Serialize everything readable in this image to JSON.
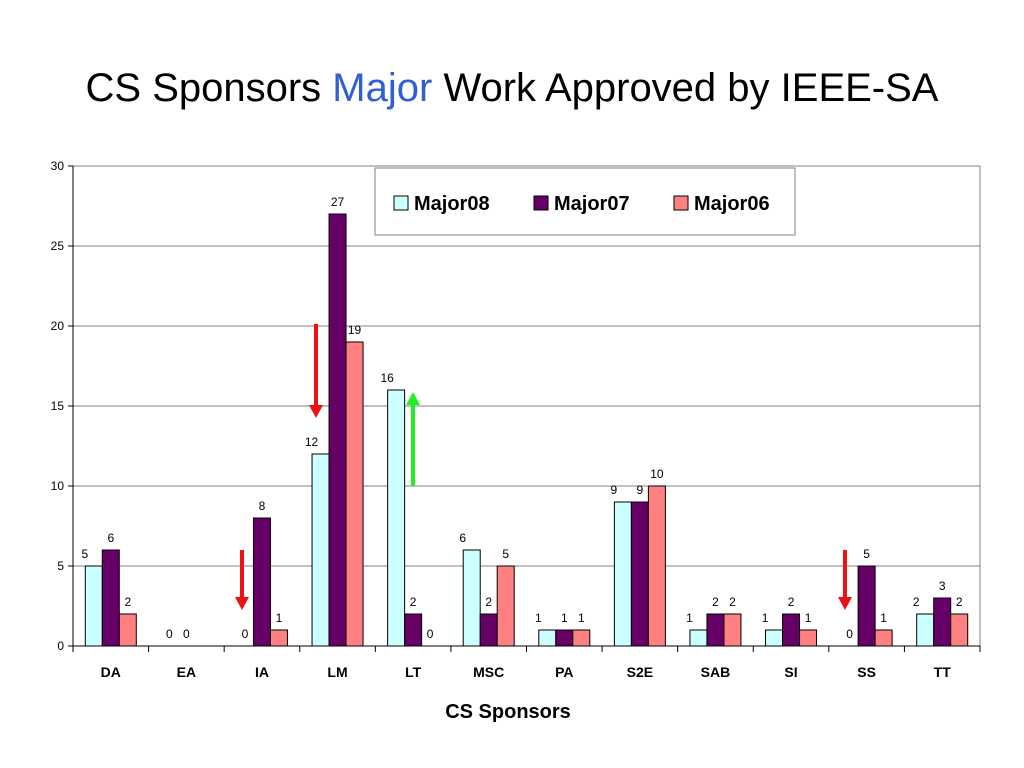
{
  "title": {
    "part1": "CS Sponsors ",
    "highlight": "Major",
    "part2": " Work Approved by IEEE-SA",
    "highlight_color": "#2f5fd0"
  },
  "chart_data": {
    "type": "bar",
    "categories": [
      "DA",
      "EA",
      "IA",
      "LM",
      "LT",
      "MSC",
      "PA",
      "S2E",
      "SAB",
      "SI",
      "SS",
      "TT"
    ],
    "series": [
      {
        "name": "Major08",
        "color": "#ccffff",
        "values": [
          5,
          0,
          0,
          12,
          16,
          6,
          1,
          9,
          1,
          1,
          0,
          2
        ]
      },
      {
        "name": "Major07",
        "color": "#660066",
        "values": [
          6,
          0,
          8,
          27,
          2,
          2,
          1,
          9,
          2,
          2,
          5,
          3
        ]
      },
      {
        "name": "Major06",
        "color": "#ff8080",
        "values": [
          2,
          null,
          1,
          19,
          0,
          5,
          1,
          10,
          2,
          1,
          1,
          2
        ]
      }
    ],
    "xlabel": "CS Sponsors",
    "ylabel": "",
    "ylim": [
      0,
      30
    ],
    "yticks": [
      0,
      5,
      10,
      15,
      20,
      25,
      30
    ],
    "grid": true,
    "legend_position": "top-right",
    "annotations": [
      {
        "type": "arrow",
        "direction": "down",
        "color": "#ee1111",
        "category": "LM"
      },
      {
        "type": "arrow",
        "direction": "up",
        "color": "#22ee22",
        "category": "LT"
      },
      {
        "type": "arrow",
        "direction": "down",
        "color": "#ee1111",
        "category": "IA"
      },
      {
        "type": "arrow",
        "direction": "down",
        "color": "#ee1111",
        "category": "SS"
      }
    ]
  }
}
